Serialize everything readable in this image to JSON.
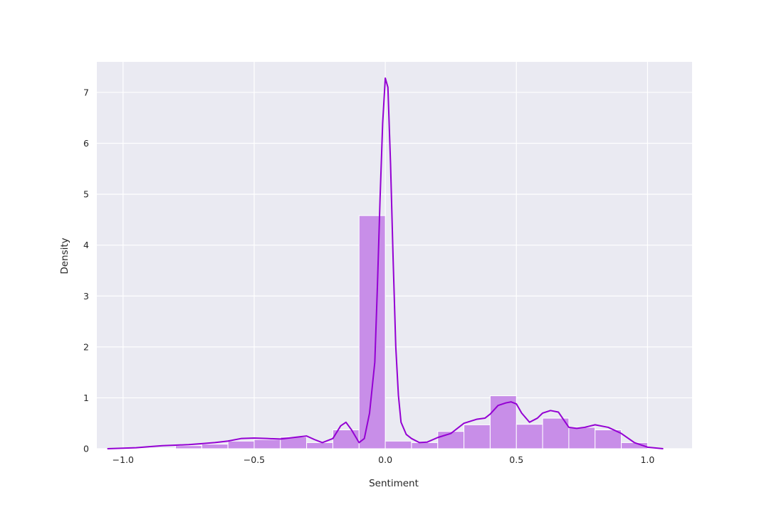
{
  "chart_data": {
    "type": "bar",
    "subtype": "histogram-with-kde",
    "xlabel": "Sentiment",
    "ylabel": "Density",
    "xlim": [
      -1.1,
      1.17
    ],
    "ylim": [
      0,
      7.6
    ],
    "xticks": [
      -1.0,
      -0.5,
      0.0,
      0.5,
      1.0
    ],
    "xtick_labels": [
      "−1.0",
      "−0.5",
      "0.0",
      "0.5",
      "1.0"
    ],
    "yticks": [
      0,
      1,
      2,
      3,
      4,
      5,
      6,
      7
    ],
    "ytick_labels": [
      "0",
      "1",
      "2",
      "3",
      "4",
      "5",
      "6",
      "7"
    ],
    "grid": true,
    "background": "#eaeaf2",
    "colors": {
      "bar_fill": "#c88ee8",
      "bar_edge": "#ffffff",
      "kde_line": "#9400d3"
    },
    "bins": {
      "edges": [
        -1.0,
        -0.9,
        -0.8,
        -0.7,
        -0.6,
        -0.5,
        -0.4,
        -0.3,
        -0.2,
        -0.1,
        0.0,
        0.1,
        0.2,
        0.3,
        0.4,
        0.5,
        0.6,
        0.7,
        0.8,
        0.9,
        1.0
      ],
      "density": [
        0.0,
        0.01,
        0.06,
        0.09,
        0.15,
        0.18,
        0.23,
        0.12,
        0.37,
        4.58,
        0.15,
        0.12,
        0.34,
        0.47,
        1.04,
        0.48,
        0.6,
        0.42,
        0.37,
        0.12
      ]
    },
    "kde": {
      "x": [
        -1.06,
        -1.0,
        -0.95,
        -0.9,
        -0.85,
        -0.8,
        -0.75,
        -0.7,
        -0.65,
        -0.6,
        -0.55,
        -0.5,
        -0.45,
        -0.4,
        -0.35,
        -0.3,
        -0.27,
        -0.24,
        -0.2,
        -0.17,
        -0.15,
        -0.13,
        -0.1,
        -0.08,
        -0.06,
        -0.04,
        -0.03,
        -0.02,
        -0.01,
        0.0,
        0.01,
        0.02,
        0.03,
        0.04,
        0.05,
        0.06,
        0.08,
        0.1,
        0.13,
        0.16,
        0.2,
        0.25,
        0.3,
        0.35,
        0.38,
        0.4,
        0.43,
        0.46,
        0.48,
        0.5,
        0.52,
        0.55,
        0.58,
        0.6,
        0.63,
        0.66,
        0.7,
        0.73,
        0.76,
        0.8,
        0.85,
        0.9,
        0.95,
        1.0,
        1.06
      ],
      "y": [
        0.0,
        0.01,
        0.02,
        0.04,
        0.06,
        0.07,
        0.08,
        0.1,
        0.12,
        0.15,
        0.2,
        0.21,
        0.2,
        0.19,
        0.22,
        0.25,
        0.18,
        0.12,
        0.2,
        0.45,
        0.52,
        0.38,
        0.12,
        0.2,
        0.7,
        1.7,
        3.2,
        4.9,
        6.4,
        7.28,
        7.1,
        5.6,
        3.7,
        2.0,
        1.05,
        0.52,
        0.28,
        0.2,
        0.12,
        0.13,
        0.22,
        0.3,
        0.5,
        0.58,
        0.6,
        0.68,
        0.85,
        0.9,
        0.92,
        0.88,
        0.7,
        0.52,
        0.6,
        0.7,
        0.75,
        0.72,
        0.42,
        0.4,
        0.42,
        0.47,
        0.42,
        0.3,
        0.12,
        0.03,
        0.0
      ]
    }
  }
}
